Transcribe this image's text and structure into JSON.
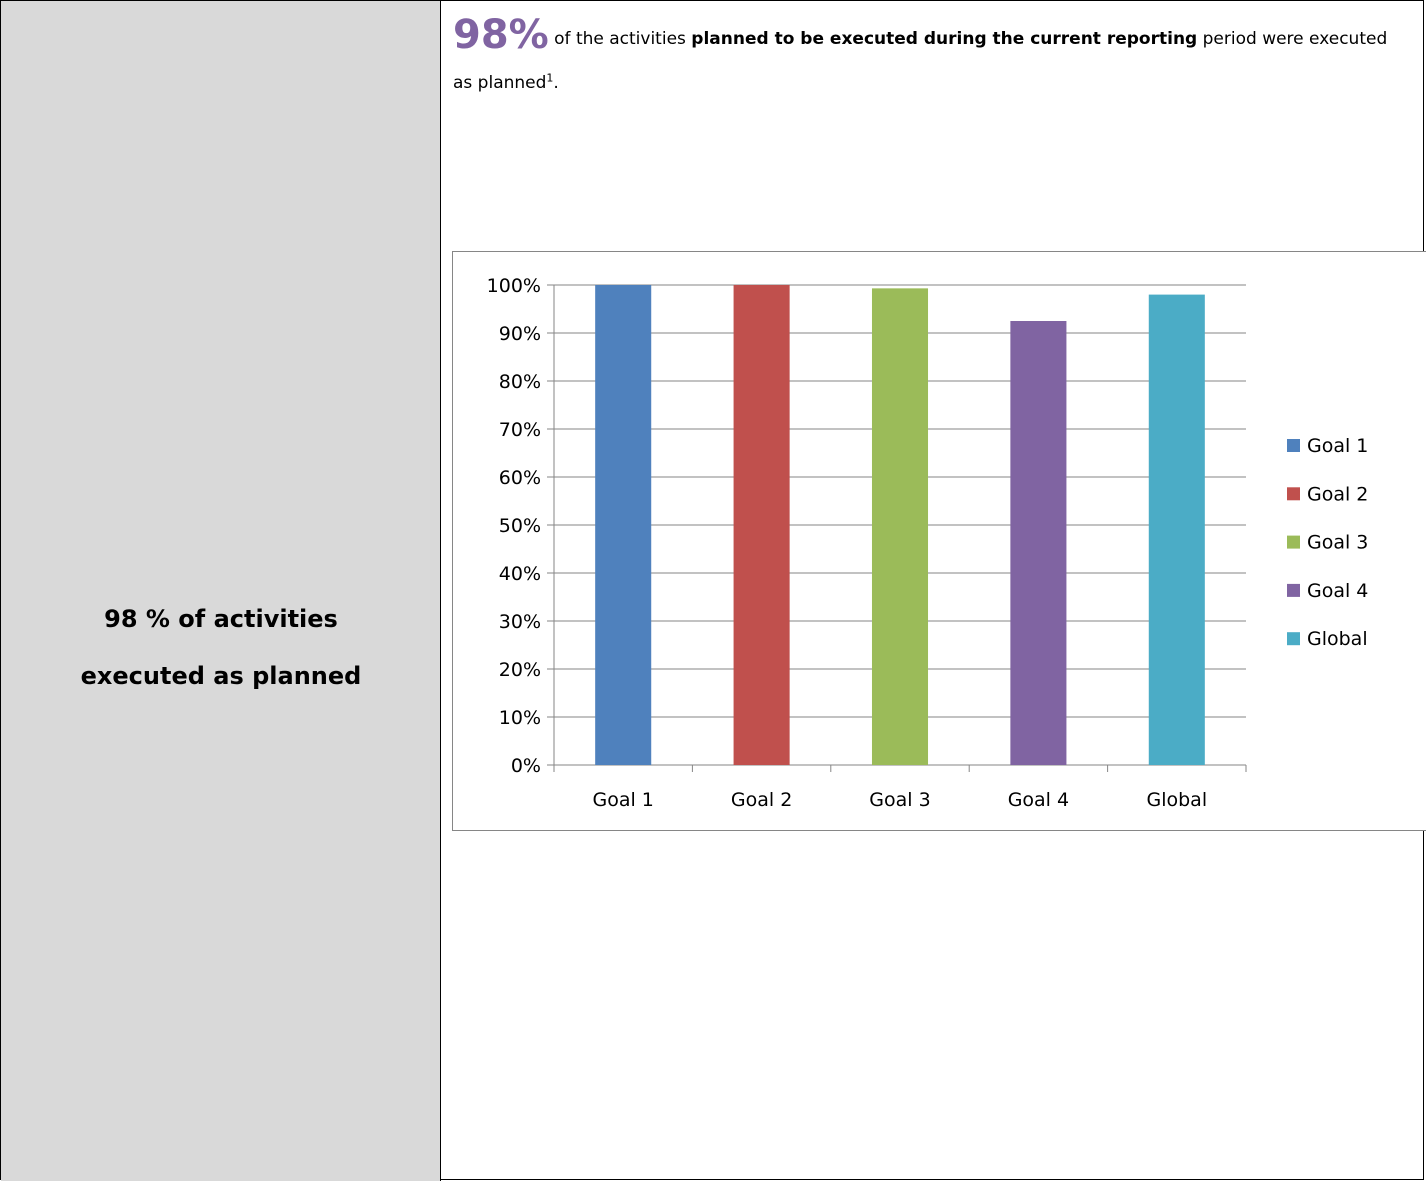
{
  "left_label": {
    "line1": "98 % of activities",
    "line2": "executed as planned"
  },
  "summary": {
    "big_value": "98%",
    "text_part1": " of the activities ",
    "text_bold": "planned to be executed during the current reporting",
    "text_part2": " period were executed as planned",
    "footnote_ref": "1",
    "text_end": "."
  },
  "colors": {
    "left_cell_bg": "#d9d9d9",
    "big_value": "#8064a2",
    "series": [
      "#4f81bd",
      "#c0504d",
      "#9bbb59",
      "#8064a2",
      "#4bacc6"
    ]
  },
  "chart_data": {
    "type": "bar",
    "categories": [
      "Goal 1",
      "Goal 2",
      "Goal 3",
      "Goal 4",
      "Global"
    ],
    "values": [
      1.0,
      1.0,
      0.993,
      0.925,
      0.98
    ],
    "yticks": [
      "0%",
      "10%",
      "20%",
      "30%",
      "40%",
      "50%",
      "60%",
      "70%",
      "80%",
      "90%",
      "100%"
    ],
    "ylim": [
      0,
      1
    ],
    "grid": true,
    "legend_position": "right",
    "legend": [
      "Goal 1",
      "Goal 2",
      "Goal 3",
      "Goal 4",
      "Global"
    ]
  }
}
